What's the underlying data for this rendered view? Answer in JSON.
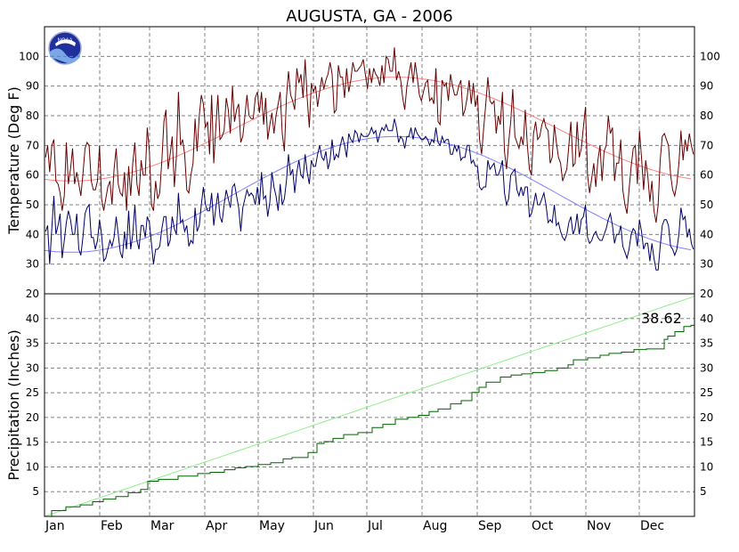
{
  "chart_data": [
    {
      "type": "line",
      "title": "AUGUSTA, GA - 2006",
      "ylabel": "Temperature (Deg F)",
      "ylim": [
        20,
        110
      ],
      "yticks": [
        20,
        30,
        40,
        50,
        60,
        70,
        80,
        90,
        100
      ],
      "months": [
        "Jan",
        "Feb",
        "Mar",
        "Apr",
        "May",
        "Jun",
        "Jul",
        "Aug",
        "Sep",
        "Oct",
        "Nov",
        "Dec"
      ],
      "grid": true,
      "colors": {
        "obs_high": "#660000",
        "obs_low": "#000066",
        "normal_high": "#ff8080",
        "normal_low": "#8080ff"
      },
      "series": [
        {
          "role": "observed_high",
          "values": [
            66,
            70,
            61,
            70,
            72,
            58,
            57,
            54,
            48,
            53,
            71,
            57,
            62,
            69,
            57,
            61,
            57,
            53,
            60,
            69,
            71,
            70,
            58,
            55,
            55,
            58,
            70,
            52,
            48,
            52,
            56,
            58,
            50,
            62,
            69,
            57,
            54,
            53,
            61,
            48,
            63,
            53,
            64,
            71,
            57,
            53,
            65,
            60,
            60,
            76,
            68,
            50,
            48,
            58,
            52,
            54,
            65,
            78,
            82,
            62,
            67,
            73,
            56,
            66,
            88,
            70,
            72,
            67,
            55,
            54,
            60,
            64,
            79,
            68,
            80,
            87,
            84,
            76,
            78,
            67,
            87,
            64,
            76,
            87,
            72,
            73,
            75,
            86,
            82,
            74,
            90,
            78,
            82,
            84,
            71,
            73,
            80,
            87,
            80,
            79,
            79,
            86,
            88,
            81,
            88,
            77,
            86,
            72,
            77,
            81,
            74,
            80,
            84,
            88,
            74,
            68,
            86,
            95,
            87,
            85,
            82,
            96,
            91,
            94,
            86,
            99,
            86,
            76,
            91,
            88,
            90,
            83,
            88,
            93,
            89,
            92,
            94,
            98,
            94,
            81,
            82,
            97,
            93,
            93,
            86,
            96,
            88,
            92,
            98,
            95,
            95,
            96,
            97,
            99,
            94,
            89,
            96,
            91,
            96,
            94,
            93,
            90,
            97,
            91,
            100,
            99,
            95,
            95,
            103,
            92,
            95,
            92,
            86,
            82,
            90,
            94,
            98,
            91,
            98,
            93,
            87,
            85,
            88,
            91,
            92,
            85,
            86,
            84,
            96,
            78,
            77,
            92,
            90,
            91,
            85,
            94,
            90,
            87,
            87,
            90,
            92,
            80,
            82,
            86,
            92,
            84,
            91,
            83,
            87,
            72,
            67,
            76,
            84,
            93,
            85,
            84,
            85,
            74,
            80,
            77,
            88,
            68,
            62,
            71,
            78,
            89,
            73,
            71,
            69,
            73,
            70,
            82,
            70,
            62,
            60,
            74,
            78,
            72,
            73,
            77,
            79,
            76,
            75,
            64,
            66,
            77,
            71,
            66,
            64,
            58,
            60,
            62,
            70,
            78,
            63,
            64,
            78,
            66,
            69,
            76,
            83,
            60,
            54,
            59,
            64,
            56,
            65,
            70,
            58,
            68,
            70,
            80,
            74,
            76,
            58,
            64,
            64,
            72,
            55,
            50,
            47,
            55,
            63,
            69,
            70,
            57,
            75,
            66,
            55,
            65,
            60,
            51,
            58,
            48,
            44,
            50,
            65,
            73,
            74,
            72,
            70,
            60,
            55,
            53,
            57,
            64,
            75,
            65,
            72,
            68,
            74,
            70,
            67
          ]
        },
        {
          "role": "observed_low",
          "values": [
            41,
            43,
            30,
            42,
            53,
            40,
            43,
            47,
            32,
            38,
            44,
            48,
            45,
            40,
            40,
            47,
            35,
            33,
            39,
            47,
            49,
            50,
            39,
            39,
            35,
            38,
            45,
            40,
            31,
            32,
            35,
            38,
            36,
            39,
            46,
            40,
            34,
            32,
            41,
            35,
            48,
            35,
            40,
            50,
            38,
            35,
            43,
            43,
            39,
            46,
            44,
            37,
            30,
            35,
            35,
            36,
            42,
            46,
            46,
            36,
            38,
            46,
            42,
            40,
            54,
            44,
            45,
            41,
            43,
            36,
            38,
            37,
            49,
            41,
            43,
            50,
            56,
            50,
            48,
            48,
            54,
            43,
            49,
            54,
            46,
            44,
            50,
            55,
            52,
            49,
            56,
            57,
            53,
            49,
            41,
            49,
            52,
            55,
            53,
            54,
            53,
            50,
            56,
            50,
            61,
            52,
            53,
            46,
            51,
            61,
            56,
            53,
            48,
            57,
            50,
            52,
            58,
            67,
            60,
            62,
            54,
            61,
            65,
            60,
            59,
            67,
            61,
            57,
            65,
            63,
            63,
            67,
            70,
            66,
            65,
            68,
            62,
            65,
            72,
            65,
            67,
            66,
            70,
            73,
            70,
            66,
            74,
            72,
            71,
            75,
            74,
            71,
            74,
            73,
            73,
            73,
            74,
            76,
            74,
            75,
            71,
            74,
            76,
            75,
            77,
            75,
            75,
            75,
            79,
            76,
            71,
            73,
            72,
            69,
            73,
            73,
            76,
            72,
            76,
            74,
            73,
            72,
            72,
            73,
            72,
            70,
            72,
            71,
            76,
            71,
            70,
            73,
            71,
            72,
            72,
            67,
            67,
            70,
            68,
            70,
            65,
            66,
            66,
            70,
            70,
            64,
            65,
            63,
            63,
            56,
            55,
            56,
            56,
            65,
            62,
            63,
            64,
            60,
            60,
            62,
            65,
            54,
            50,
            52,
            60,
            61,
            62,
            55,
            53,
            56,
            53,
            56,
            56,
            46,
            47,
            50,
            54,
            50,
            50,
            52,
            54,
            50,
            44,
            45,
            44,
            50,
            43,
            44,
            41,
            39,
            38,
            40,
            44,
            46,
            40,
            42,
            47,
            40,
            45,
            46,
            50,
            39,
            37,
            38,
            40,
            41,
            39,
            38,
            38,
            40,
            42,
            45,
            47,
            43,
            37,
            40,
            40,
            43,
            36,
            34,
            32,
            35,
            40,
            42,
            41,
            36,
            45,
            41,
            35,
            37,
            37,
            31,
            37,
            32,
            28,
            28,
            36,
            43,
            45,
            45,
            43,
            36,
            35,
            33,
            35,
            40,
            49,
            45,
            46,
            39,
            42,
            37,
            35
          ]
        },
        {
          "role": "normal_high",
          "range": [
            58,
            93
          ]
        },
        {
          "role": "normal_low",
          "range": [
            34,
            73
          ]
        }
      ]
    },
    {
      "type": "area",
      "ylabel": "Precipitation (Inches)",
      "ylim": [
        0,
        45
      ],
      "yticks": [
        5,
        10,
        15,
        20,
        25,
        30,
        35,
        40
      ],
      "right_ticks_top": "20",
      "grid": true,
      "annotation": "38.62",
      "total": 38.62,
      "colors": {
        "observed": "#006400",
        "normal": "#90ee90"
      },
      "observed_steps": [
        [
          4,
          0.9
        ],
        [
          12,
          0.6
        ],
        [
          20,
          0.3
        ],
        [
          27,
          0.5
        ],
        [
          33,
          0.4
        ],
        [
          40,
          0.4
        ],
        [
          47,
          0.6
        ],
        [
          54,
          0.5
        ],
        [
          58,
          1.3
        ],
        [
          64,
          0.3
        ],
        [
          75,
          0.5
        ],
        [
          86,
          0.4
        ],
        [
          93,
          0.2
        ],
        [
          101,
          0.4
        ],
        [
          107,
          0.3
        ],
        [
          113,
          0.2
        ],
        [
          120,
          0.3
        ],
        [
          127,
          0.3
        ],
        [
          134,
          0.6
        ],
        [
          139,
          0.2
        ],
        [
          148,
          0.8
        ],
        [
          153,
          1.4
        ],
        [
          157,
          0.3
        ],
        [
          162,
          0.5
        ],
        [
          168,
          0.6
        ],
        [
          176,
          0.3
        ],
        [
          184,
          0.8
        ],
        [
          190,
          0.5
        ],
        [
          197,
          0.8
        ],
        [
          204,
          0.3
        ],
        [
          210,
          0.3
        ],
        [
          216,
          0.6
        ],
        [
          221,
          0.4
        ],
        [
          228,
          0.8
        ],
        [
          234,
          0.5
        ],
        [
          240,
          1.3
        ],
        [
          244,
          0.8
        ],
        [
          248,
          0.8
        ],
        [
          256,
          0.8
        ],
        [
          262,
          0.3
        ],
        [
          268,
          0.2
        ],
        [
          274,
          0.2
        ],
        [
          281,
          0.3
        ],
        [
          288,
          0.4
        ],
        [
          294,
          0.5
        ],
        [
          297,
          0.8
        ],
        [
          305,
          0.3
        ],
        [
          312,
          0.4
        ],
        [
          317,
          0.3
        ],
        [
          324,
          0.2
        ],
        [
          331,
          0.4
        ],
        [
          338,
          0.1
        ],
        [
          348,
          1.5
        ],
        [
          350,
          0.5
        ],
        [
          354,
          0.7
        ],
        [
          359,
          0.8
        ],
        [
          363,
          0.18
        ]
      ],
      "normal_total": 44.5
    }
  ]
}
